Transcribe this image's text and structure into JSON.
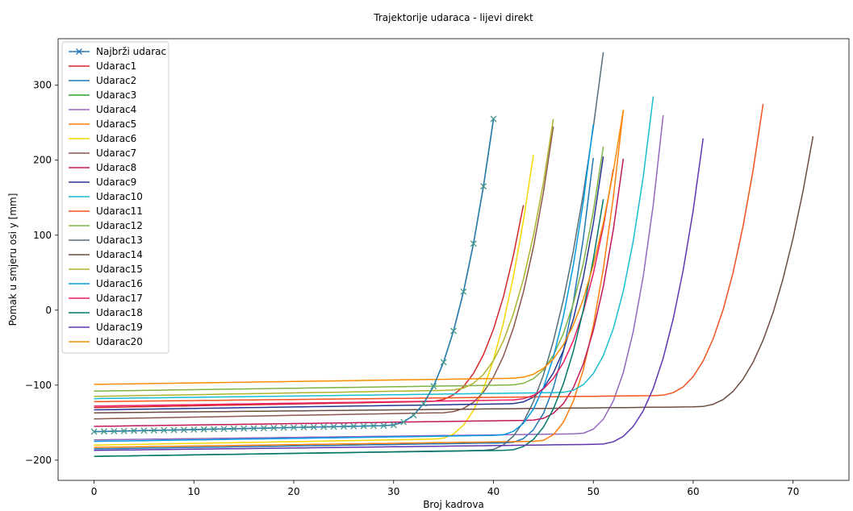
{
  "chart_data": {
    "type": "line",
    "title": "Trajektorije udaraca - lijevi direkt",
    "xlabel": "Broj kadrova",
    "ylabel": "Pomak u smjeru osi y [mm]",
    "xlim": [
      -3.6,
      75.6
    ],
    "ylim": [
      -227,
      362
    ],
    "xticks": [
      0,
      10,
      20,
      30,
      40,
      50,
      60,
      70
    ],
    "yticks": [
      -200,
      -100,
      0,
      100,
      200,
      300
    ],
    "tick_labels_x": [
      "0",
      "10",
      "20",
      "30",
      "40",
      "50",
      "60",
      "70"
    ],
    "tick_labels_y": [
      "−200",
      "−100",
      "0",
      "100",
      "200",
      "300"
    ],
    "grid": false,
    "legend_position": "upper-left",
    "series": [
      {
        "name": "Najbrži udarac",
        "color": "#2878b4",
        "marker": "x",
        "start": -162,
        "end": 255,
        "lastX": 40,
        "rise": 11,
        "p": 2.6
      },
      {
        "name": "Udarac1",
        "color": "#d62728",
        "start": -130,
        "end": 140,
        "lastX": 43,
        "rise": 10,
        "p": 2.8
      },
      {
        "name": "Udarac2",
        "color": "#1f77b4",
        "start": -185,
        "end": 203,
        "lastX": 50,
        "rise": 9,
        "p": 2.8
      },
      {
        "name": "Udarac3",
        "color": "#2ca02c",
        "start": -162,
        "end": 255,
        "lastX": 40,
        "rise": 11,
        "p": 2.6
      },
      {
        "name": "Udarac4",
        "color": "#9467bd",
        "start": -173,
        "end": 260,
        "lastX": 57,
        "rise": 9,
        "p": 2.8
      },
      {
        "name": "Udarac5",
        "color": "#ff7f0e",
        "start": -183,
        "end": 267,
        "lastX": 53,
        "rise": 9,
        "p": 2.6
      },
      {
        "name": "Udarac6",
        "color": "#f5d800",
        "start": -180,
        "end": 207,
        "lastX": 44,
        "rise": 10,
        "p": 2.5
      },
      {
        "name": "Udarac7",
        "color": "#8c564b",
        "start": -145,
        "end": 245,
        "lastX": 46,
        "rise": 12,
        "p": 3.0
      },
      {
        "name": "Udarac8",
        "color": "#c2185b",
        "start": -155,
        "end": 202,
        "lastX": 53,
        "rise": 10,
        "p": 3.0
      },
      {
        "name": "Udarac9",
        "color": "#283593",
        "start": -133,
        "end": 205,
        "lastX": 51,
        "rise": 10,
        "p": 3.0
      },
      {
        "name": "Udarac10",
        "color": "#17becf",
        "start": -118,
        "end": 285,
        "lastX": 56,
        "rise": 10,
        "p": 3.0
      },
      {
        "name": "Udarac11",
        "color": "#f4511e",
        "start": -122,
        "end": 275,
        "lastX": 67,
        "rise": 11,
        "p": 2.7
      },
      {
        "name": "Udarac12",
        "color": "#7cb342",
        "start": -108,
        "end": 218,
        "lastX": 51,
        "rise": 10,
        "p": 3.0
      },
      {
        "name": "Udarac13",
        "color": "#546e7a",
        "start": -195,
        "end": 344,
        "lastX": 51,
        "rise": 12,
        "p": 2.4
      },
      {
        "name": "Udarac14",
        "color": "#6d4c41",
        "start": -137,
        "end": 232,
        "lastX": 72,
        "rise": 12,
        "p": 2.6
      },
      {
        "name": "Udarac15",
        "color": "#afb42b",
        "start": -115,
        "end": 255,
        "lastX": 46,
        "rise": 11,
        "p": 2.8
      },
      {
        "name": "Udarac16",
        "color": "#039be5",
        "start": -175,
        "end": 248,
        "lastX": 50,
        "rise": 10,
        "p": 2.7
      },
      {
        "name": "Udarac17",
        "color": "#e91e63",
        "start": -128,
        "end": 188,
        "lastX": 52,
        "rise": 11,
        "p": 3.0
      },
      {
        "name": "Udarac18",
        "color": "#00796b",
        "start": -195,
        "end": 148,
        "lastX": 51,
        "rise": 10,
        "p": 2.6
      },
      {
        "name": "Udarac19",
        "color": "#5e35b1",
        "start": -187,
        "end": 229,
        "lastX": 61,
        "rise": 11,
        "p": 2.8
      },
      {
        "name": "Udarac20",
        "color": "#fb8c00",
        "start": -99,
        "end": 267,
        "lastX": 53,
        "rise": 12,
        "p": 3.0
      }
    ]
  }
}
